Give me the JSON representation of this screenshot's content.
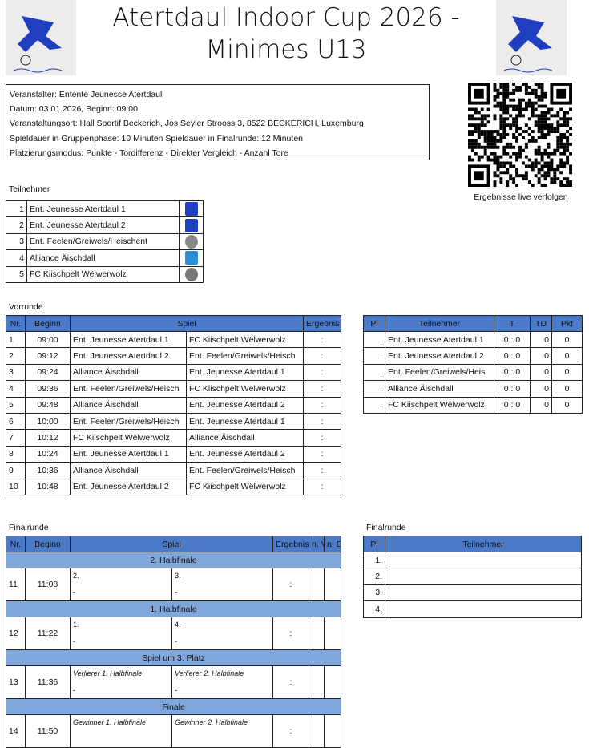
{
  "header": {
    "title_line1": "Atertdaul Indoor Cup 2026 -",
    "title_line2": "Minimes U13",
    "logo": "Jeunesse Atertdaul"
  },
  "info": [
    "Veranstalter: Entente Jeunesse Atertdaul",
    "Datum: 03.01.2026, Beginn: 09:00",
    "Veranstaltungsort: Hall Sportif Beckerich, Jos Seyler Strooss 3, 8522 BECKERICH, Luxemburg",
    "Spieldauer in Gruppenphase: 10 Minuten Spieldauer in Finalrunde: 12 Minuten",
    "Platzierungsmodus: Punkte - Tordifferenz - Direkter Vergleich - Anzahl Tore"
  ],
  "qr": {
    "caption": "Ergebnisse live verfolgen"
  },
  "participants": {
    "label": "Teilnehmer",
    "items": [
      {
        "nr": "1",
        "name": "Ent. Jeunesse Atertdaul 1",
        "color": "#1f3fc0"
      },
      {
        "nr": "2",
        "name": "Ent. Jeunesse Atertdaul 2",
        "color": "#1f3fc0"
      },
      {
        "nr": "3",
        "name": "Ent. Feelen/Greiwels/Heischent",
        "color": "#888888"
      },
      {
        "nr": "4",
        "name": "Alliance Äischdall",
        "color": "#2a8fd6"
      },
      {
        "nr": "5",
        "name": "FC Kiischpelt Wëlwerwolz",
        "color": "#777777"
      }
    ]
  },
  "vorrunde": {
    "label": "Vorrunde",
    "headers": [
      "Nr.",
      "Beginn",
      "Spiel",
      "Ergebnis"
    ],
    "matches": [
      [
        "1",
        "09:00",
        "Ent. Jeunesse Atertdaul 1",
        "FC Kiischpelt Wëlwerwolz",
        ":"
      ],
      [
        "2",
        "09:12",
        "Ent. Jeunesse Atertdaul 2",
        "Ent. Feelen/Greiwels/Heisch",
        ":"
      ],
      [
        "3",
        "09:24",
        "Alliance Äischdall",
        "Ent. Jeunesse Atertdaul 1",
        ":"
      ],
      [
        "4",
        "09:36",
        "Ent. Feelen/Greiwels/Heisch",
        "FC Kiischpelt Wëlwerwolz",
        ":"
      ],
      [
        "5",
        "09:48",
        "Alliance Äischdall",
        "Ent. Jeunesse Atertdaul 2",
        ":"
      ],
      [
        "6",
        "10:00",
        "Ent. Feelen/Greiwels/Heisch",
        "Ent. Jeunesse Atertdaul 1",
        ":"
      ],
      [
        "7",
        "10:12",
        "FC Kiischpelt Wëlwerwolz",
        "Alliance Äischdall",
        ":"
      ],
      [
        "8",
        "10:24",
        "Ent. Jeunesse Atertdaul 1",
        "Ent. Jeunesse Atertdaul 2",
        ":"
      ],
      [
        "9",
        "10:36",
        "Alliance Äischdall",
        "Ent. Feelen/Greiwels/Heisch",
        ":"
      ],
      [
        "10",
        "10:48",
        "Ent. Jeunesse Atertdaul 2",
        "FC Kiischpelt Wëlwerwolz",
        ":"
      ]
    ]
  },
  "standings": {
    "headers": [
      "Pl",
      "Teilnehmer",
      "T",
      "TD",
      "Pkt"
    ],
    "rows": [
      [
        ".",
        "Ent. Jeunesse Atertdaul 1",
        "0 : 0",
        "0",
        "0"
      ],
      [
        ".",
        "Ent. Jeunesse Atertdaul 2",
        "0 : 0",
        "0",
        "0"
      ],
      [
        ".",
        "Ent. Feelen/Greiwels/Heis",
        "0 : 0",
        "0",
        "0"
      ],
      [
        ".",
        "Alliance Äischdall",
        "0 : 0",
        "0",
        "0"
      ],
      [
        ".",
        "FC Kiischpelt Wëlwerwolz",
        "0 : 0",
        "0",
        "0"
      ]
    ]
  },
  "finalrunde": {
    "label": "Finalrunde",
    "headers": [
      "Nr.",
      "Beginn",
      "Spiel",
      "Ergebnis",
      "n. V.",
      "n. E."
    ],
    "rounds": [
      {
        "title": "2. Halbfinale",
        "nr": "11",
        "time": "11:08",
        "home": "2.",
        "away": "3.",
        "italic": false,
        "home_team": "-",
        "away_team": "-",
        "result": ":"
      },
      {
        "title": "1. Halbfinale",
        "nr": "12",
        "time": "11:22",
        "home": "1.",
        "away": "4.",
        "italic": false,
        "home_team": "-",
        "away_team": "-",
        "result": ":"
      },
      {
        "title": "Spiel um 3. Platz",
        "nr": "13",
        "time": "11:36",
        "home": "Verlierer 1. Halbfinale",
        "away": "Verlierer 2. Halbfinale",
        "italic": true,
        "home_team": "-",
        "away_team": "-",
        "result": ":"
      },
      {
        "title": "Finale",
        "nr": "14",
        "time": "11:50",
        "home": "Gewinner 1. Halbfinale",
        "away": "Gewinner 2. Halbfinale",
        "italic": true,
        "home_team": "",
        "away_team": "",
        "result": ":"
      }
    ]
  },
  "final_ranking": {
    "label": "Finalrunde",
    "headers": [
      "Pl",
      "Teilnehmer"
    ],
    "rows": [
      "1.",
      "2.",
      "3.",
      "4."
    ]
  }
}
